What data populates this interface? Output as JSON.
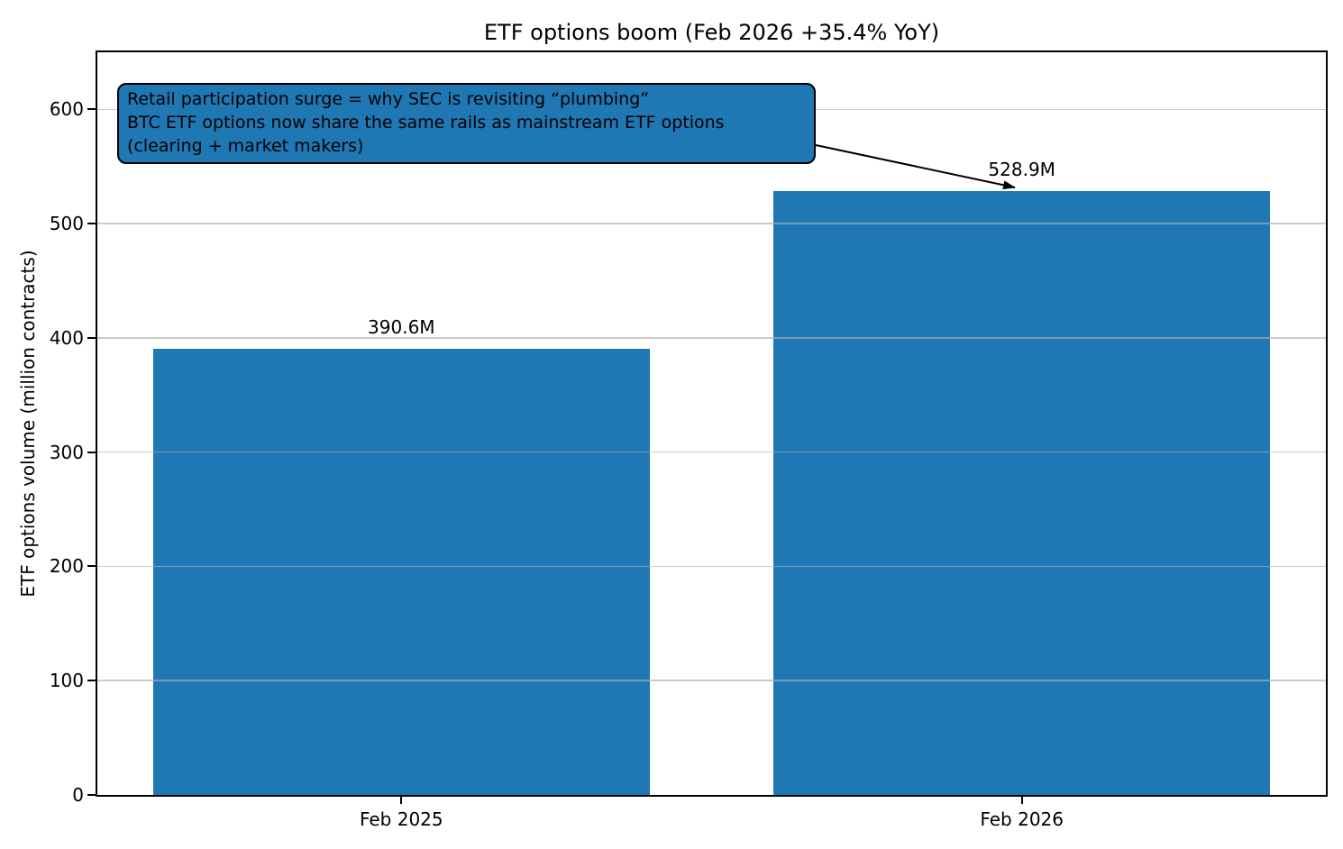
{
  "chart_data": {
    "type": "bar",
    "title": "ETF options boom (Feb 2026 +35.4% YoY)",
    "ylabel": "ETF options volume (million contracts)",
    "xlabel": "",
    "categories": [
      "Feb 2025",
      "Feb 2026"
    ],
    "values": [
      390.6,
      528.9
    ],
    "bar_value_labels": [
      "390.6M",
      "528.9M"
    ],
    "ylim": [
      0,
      650
    ],
    "yticks": [
      0,
      100,
      200,
      300,
      400,
      500,
      600
    ],
    "grid": "horizontal",
    "legend_position": "none",
    "bar_color": "#1f77b4",
    "annotation": {
      "lines": [
        "Retail participation surge = why SEC is revisiting “plumbing”",
        "BTC ETF options now share the same rails as mainstream ETF options",
        "(clearing + market makers)"
      ],
      "box_color": "#1f77b4",
      "text_color": "#000000",
      "arrow": {
        "from": [
          905,
          161
        ],
        "to": [
          1126,
          208
        ]
      }
    }
  }
}
